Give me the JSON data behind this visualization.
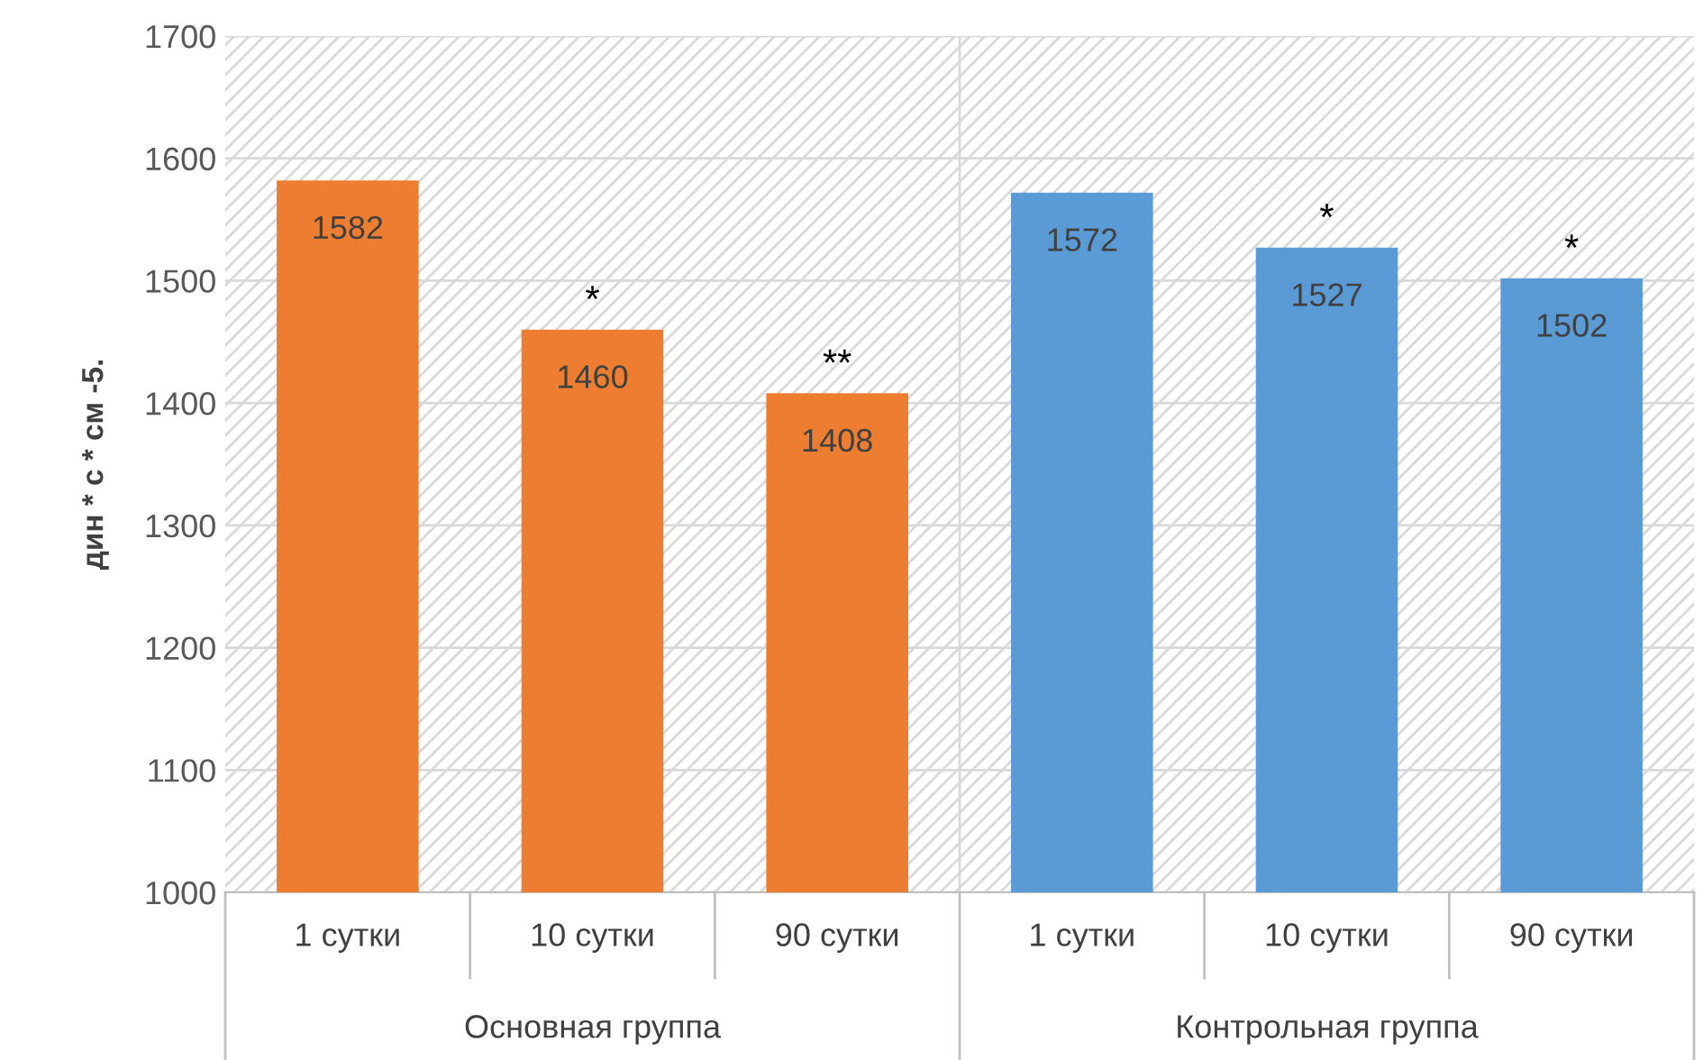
{
  "chart_data": {
    "type": "bar",
    "ylabel": "дин * с * см -5.",
    "categories": [
      "1 сутки",
      "10 сутки",
      "90 сутки",
      "1 сутки",
      "10 сутки",
      "90 сутки"
    ],
    "values": [
      1582,
      1460,
      1408,
      1572,
      1527,
      1502
    ],
    "colors": [
      "#ed7d31",
      "#ed7d31",
      "#ed7d31",
      "#5b9bd5",
      "#5b9bd5",
      "#5b9bd5"
    ],
    "data_labels": true,
    "ylim": [
      1000,
      1700
    ],
    "yticks": [
      1000,
      1100,
      1200,
      1300,
      1400,
      1500,
      1600,
      1700
    ],
    "grid": "y",
    "annotations": [
      {
        "text": "*",
        "x": "10 сутки",
        "y": 1460
      },
      {
        "text": "**",
        "x": "90 сутки",
        "y": 1408
      },
      "*",
      "*",
      "Основная группа",
      "Контрольная группа"
    ]
  }
}
